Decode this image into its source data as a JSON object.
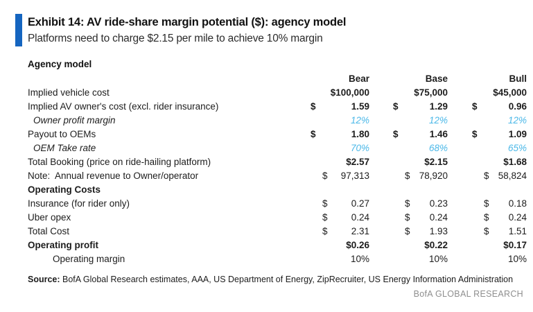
{
  "header": {
    "title": "Exhibit 14: AV ride-share margin potential ($): agency model",
    "subtitle": "Platforms need to charge $2.15 per mile to achieve 10% margin"
  },
  "table": {
    "section_title": "Agency model",
    "scenario_columns": [
      "Bear",
      "Base",
      "Bull"
    ],
    "rows": [
      {
        "label": "Implied vehicle cost",
        "values": [
          "$100,000",
          "$75,000",
          "$45,000"
        ]
      },
      {
        "label": "Implied AV owner's cost (excl. rider insurance)",
        "prefix": "$",
        "values": [
          "1.59",
          "1.29",
          "0.96"
        ]
      },
      {
        "label": "Owner profit margin",
        "values": [
          "12%",
          "12%",
          "12%"
        ]
      },
      {
        "label": "Payout to OEMs",
        "prefix": "$",
        "values": [
          "1.80",
          "1.46",
          "1.09"
        ]
      },
      {
        "label": "OEM Take rate",
        "values": [
          "70%",
          "68%",
          "65%"
        ]
      },
      {
        "label": "Total Booking (price on ride-hailing platform)",
        "values": [
          "$2.57",
          "$2.15",
          "$1.68"
        ]
      },
      {
        "label": "Note:  Annual revenue to Owner/operator",
        "prefix": "$",
        "values": [
          "97,313",
          "78,920",
          "58,824"
        ]
      },
      {
        "label": "Operating Costs",
        "values": [
          "",
          "",
          ""
        ]
      },
      {
        "label": "Insurance (for rider only)",
        "prefix": "$",
        "values": [
          "0.27",
          "0.23",
          "0.18"
        ]
      },
      {
        "label": "Uber opex",
        "prefix": "$",
        "values": [
          "0.24",
          "0.24",
          "0.24"
        ]
      },
      {
        "label": "Total Cost",
        "prefix": "$",
        "values": [
          "2.31",
          "1.93",
          "1.51"
        ]
      },
      {
        "label": "Operating profit",
        "values": [
          "$0.26",
          "$0.22",
          "$0.17"
        ]
      },
      {
        "label": "Operating margin",
        "values": [
          "10%",
          "10%",
          "10%"
        ]
      }
    ]
  },
  "footer": {
    "source_label": "Source:",
    "source_text": " BofA Global Research estimates, AAA, US Department of Energy, ZipRecruiter, US Energy Information Administration",
    "brand": "BofA GLOBAL RESEARCH"
  },
  "colors": {
    "accent_bar": "#1565C0",
    "highlight_blue": "#4BB8E8",
    "brand_gray": "#8E8E8E"
  }
}
